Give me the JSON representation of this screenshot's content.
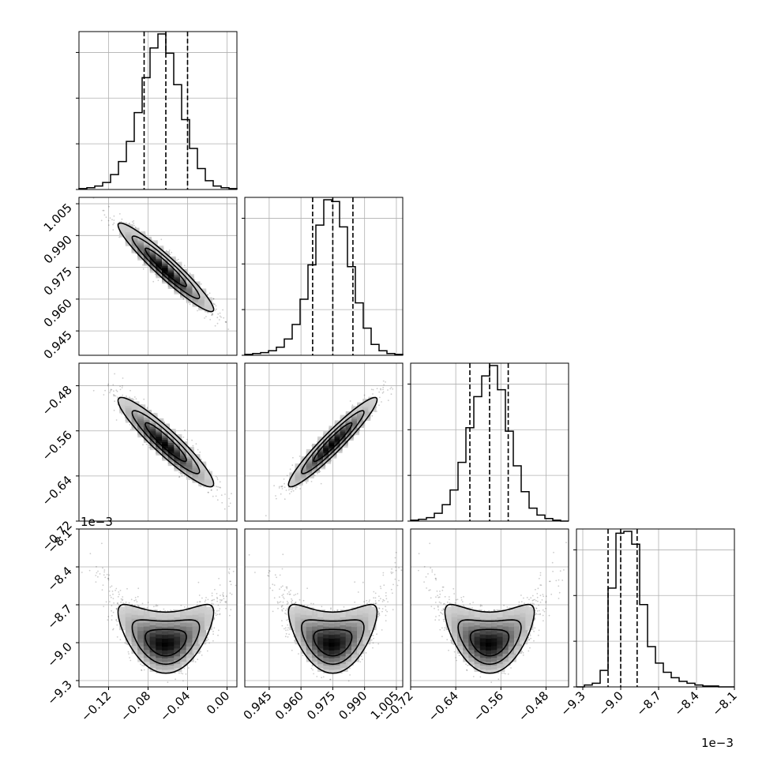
{
  "chart_data": {
    "type": "corner",
    "params": [
      {
        "index": 0,
        "range": [
          -0.15,
          0.01
        ],
        "ticks": [
          -0.12,
          -0.08,
          -0.04,
          0.0
        ],
        "tick_labels": [
          "−0.12",
          "−0.08",
          "−0.04",
          "0.00"
        ],
        "quantiles": [
          -0.084,
          -0.062,
          -0.04
        ]
      },
      {
        "index": 1,
        "range": [
          0.9335,
          1.008
        ],
        "ticks": [
          0.945,
          0.96,
          0.975,
          0.99,
          1.005
        ],
        "tick_labels": [
          "0.945",
          "0.960",
          "0.975",
          "0.990",
          "1.005"
        ],
        "quantiles": [
          0.9655,
          0.975,
          0.9845
        ]
      },
      {
        "index": 2,
        "range": [
          -0.72,
          -0.44
        ],
        "ticks": [
          -0.72,
          -0.64,
          -0.56,
          -0.48
        ],
        "tick_labels": [
          "−0.72",
          "−0.64",
          "−0.56",
          "−0.48"
        ],
        "quantiles": [
          -0.615,
          -0.58,
          -0.547
        ]
      },
      {
        "index": 3,
        "range": [
          -9.35,
          -8.1
        ],
        "ticks": [
          -9.3,
          -9.0,
          -8.7,
          -8.4,
          -8.1
        ],
        "tick_labels": [
          "−9.3",
          "−9.0",
          "−8.7",
          "−8.4",
          "−8.1"
        ],
        "quantiles": [
          -9.1,
          -9.0,
          -8.87
        ],
        "offset_label": "1e−3"
      }
    ],
    "histograms": [
      {
        "param": 0,
        "counts": [
          1,
          2,
          4,
          8,
          17,
          32,
          55,
          88,
          128,
          162,
          178,
          156,
          120,
          80,
          47,
          24,
          10,
          4,
          2,
          1
        ]
      },
      {
        "param": 1,
        "counts": [
          1,
          2,
          3,
          5,
          9,
          18,
          34,
          62,
          100,
          144,
          172,
          170,
          142,
          98,
          58,
          30,
          12,
          5,
          2,
          1
        ]
      },
      {
        "param": 2,
        "counts": [
          1,
          2,
          4,
          9,
          19,
          36,
          68,
          108,
          144,
          168,
          180,
          152,
          104,
          64,
          34,
          15,
          7,
          3,
          1,
          0
        ]
      },
      {
        "param": 3,
        "counts": [
          0,
          2,
          4,
          18,
          108,
          168,
          170,
          156,
          90,
          44,
          26,
          16,
          10,
          6,
          4,
          2,
          1,
          1,
          0,
          0
        ]
      }
    ],
    "joint": [
      {
        "x": 0,
        "y": 1,
        "mean": [
          -0.062,
          0.975
        ],
        "sd": [
          0.022,
          0.0095
        ],
        "rho": -0.95
      },
      {
        "x": 0,
        "y": 2,
        "mean": [
          -0.062,
          -0.58
        ],
        "sd": [
          0.022,
          0.036
        ],
        "rho": -0.93
      },
      {
        "x": 1,
        "y": 2,
        "mean": [
          0.975,
          -0.58
        ],
        "sd": [
          0.0095,
          0.036
        ],
        "rho": 0.95
      },
      {
        "x": 0,
        "y": 3,
        "mean": [
          -0.062,
          -9.0
        ],
        "sd": [
          0.022,
          0.11
        ],
        "rho": 0.0
      },
      {
        "x": 1,
        "y": 3,
        "mean": [
          0.975,
          -9.0
        ],
        "sd": [
          0.0095,
          0.11
        ],
        "rho": 0.0
      },
      {
        "x": 2,
        "y": 3,
        "mean": [
          -0.58,
          -9.0
        ],
        "sd": [
          0.036,
          0.11
        ],
        "rho": 0.0
      }
    ],
    "contour_levels": [
      "39.3%",
      "86.5%",
      "98.9%"
    ],
    "grid": true,
    "xlabel": "",
    "ylabel": "",
    "title": ""
  }
}
